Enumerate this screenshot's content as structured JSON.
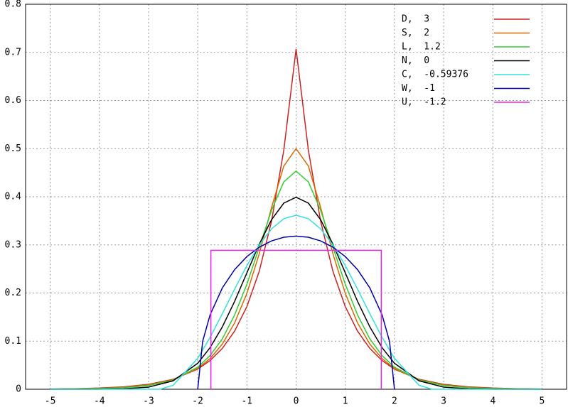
{
  "chart_data": {
    "type": "line",
    "x": [
      -5,
      -4.5,
      -4,
      -3.5,
      -3,
      -2.5,
      -2,
      -1.75,
      -1.5,
      -1.25,
      -1,
      -0.75,
      -0.5,
      -0.25,
      0,
      0.25,
      0.5,
      0.75,
      1,
      1.25,
      1.5,
      1.75,
      2,
      2.5,
      3,
      3.5,
      4,
      4.5,
      5
    ],
    "series": [
      {
        "name": "D,  3",
        "color": "#cc2222",
        "values": [
          0.0006,
          0.0012,
          0.0025,
          0.005,
          0.0102,
          0.0206,
          0.0418,
          0.0595,
          0.0848,
          0.1207,
          0.1719,
          0.2448,
          0.3487,
          0.4965,
          0.7071,
          0.4965,
          0.3487,
          0.2448,
          0.1719,
          0.1207,
          0.0848,
          0.0595,
          0.0418,
          0.0206,
          0.0102,
          0.005,
          0.0025,
          0.0012,
          0.0006
        ]
      },
      {
        "name": "S,  2",
        "color": "#dd6600",
        "values": [
          0.0004,
          0.0009,
          0.0019,
          0.0041,
          0.009,
          0.0197,
          0.0431,
          0.0637,
          0.0939,
          0.1377,
          0.1993,
          0.2813,
          0.3775,
          0.4638,
          0.5,
          0.4638,
          0.3775,
          0.2813,
          0.1993,
          0.1377,
          0.0939,
          0.0637,
          0.0431,
          0.0197,
          0.009,
          0.0041,
          0.0019,
          0.0009,
          0.0004
        ]
      },
      {
        "name": "L,  1.2",
        "color": "#33cc33",
        "values": [
          0.0002,
          0.0005,
          0.0013,
          0.0032,
          0.0078,
          0.0191,
          0.0458,
          0.0698,
          0.1046,
          0.1543,
          0.2185,
          0.2946,
          0.3716,
          0.4309,
          0.4534,
          0.4309,
          0.3716,
          0.2946,
          0.2185,
          0.1543,
          0.1046,
          0.0698,
          0.0458,
          0.0191,
          0.0078,
          0.0032,
          0.0013,
          0.0005,
          0.0002
        ]
      },
      {
        "name": "N,  0",
        "color": "#000000",
        "values": [
          0,
          0,
          0.0001,
          0.0009,
          0.0044,
          0.0175,
          0.054,
          0.0863,
          0.1295,
          0.1826,
          0.242,
          0.3011,
          0.3521,
          0.3867,
          0.3989,
          0.3867,
          0.3521,
          0.3011,
          0.242,
          0.1826,
          0.1295,
          0.0863,
          0.054,
          0.0175,
          0.0044,
          0.0009,
          0.0001,
          0,
          0
        ]
      },
      {
        "name": "C,  -0.59376",
        "color": "#33e0e0",
        "x": [
          -5,
          -2.7662,
          -2.5,
          -2,
          -1.75,
          -1.5,
          -1.25,
          -1,
          -0.75,
          -0.5,
          -0.25,
          0,
          0.25,
          0.5,
          0.75,
          1,
          1.25,
          1.5,
          1.75,
          2,
          2.5,
          2.7662,
          5
        ],
        "values": [
          0,
          0,
          0.0082,
          0.0643,
          0.1076,
          0.1568,
          0.208,
          0.257,
          0.2998,
          0.3331,
          0.3543,
          0.3615,
          0.3543,
          0.3331,
          0.2998,
          0.257,
          0.208,
          0.1568,
          0.1076,
          0.0643,
          0.0082,
          0,
          0
        ]
      },
      {
        "name": "W,  -1",
        "color": "#0000aa",
        "x": [
          -2,
          -1.9,
          -1.75,
          -1.5,
          -1.25,
          -1,
          -0.75,
          -0.5,
          -0.25,
          0,
          0.25,
          0.5,
          0.75,
          1,
          1.25,
          1.5,
          1.75,
          1.9,
          2
        ],
        "values": [
          0,
          0.0994,
          0.1541,
          0.2105,
          0.2485,
          0.2757,
          0.2951,
          0.3082,
          0.3158,
          0.3183,
          0.3158,
          0.3082,
          0.2951,
          0.2757,
          0.2485,
          0.2105,
          0.1541,
          0.0994,
          0
        ]
      },
      {
        "name": "U,  -1.2",
        "color": "#ee22ee",
        "x": [
          -1.7321,
          -1.7321,
          1.7321,
          1.7321
        ],
        "values": [
          0,
          0.2887,
          0.2887,
          0
        ]
      }
    ],
    "xlim": [
      -5.5,
      5.5
    ],
    "ylim": [
      0,
      0.8
    ],
    "xticks": [
      -5,
      -4,
      -3,
      -2,
      -1,
      0,
      1,
      2,
      3,
      4,
      5
    ],
    "yticks": [
      0,
      0.1,
      0.2,
      0.3,
      0.4,
      0.5,
      0.6,
      0.7,
      0.8
    ],
    "grid": true,
    "legend": "upper right"
  }
}
